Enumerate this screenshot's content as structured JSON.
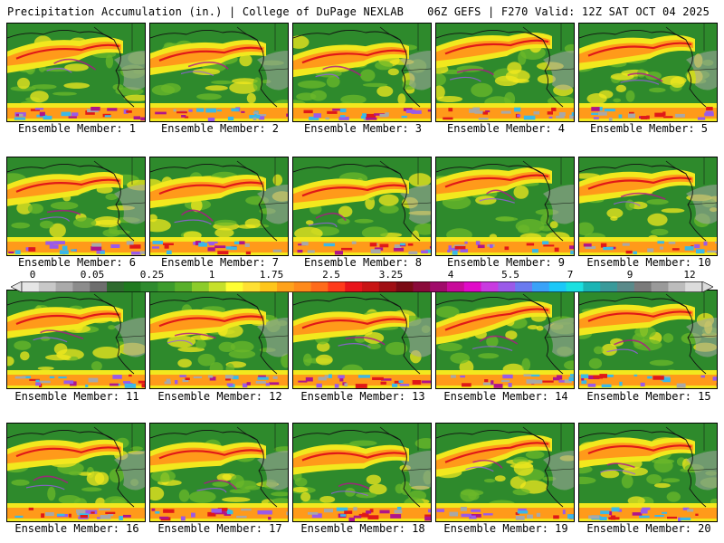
{
  "header": {
    "left_title": "Precipitation Accumulation (in.) | College of DuPage NEXLAB",
    "right_title": "06Z GEFS | F270 Valid: 12Z SAT OCT 04 2025"
  },
  "panels": [
    {
      "label": "Ensemble Member: 1"
    },
    {
      "label": "Ensemble Member: 2"
    },
    {
      "label": "Ensemble Member: 3"
    },
    {
      "label": "Ensemble Member: 4"
    },
    {
      "label": "Ensemble Member: 5"
    },
    {
      "label": "Ensemble Member: 6"
    },
    {
      "label": "Ensemble Member: 7"
    },
    {
      "label": "Ensemble Member: 8"
    },
    {
      "label": "Ensemble Member: 9"
    },
    {
      "label": "Ensemble Member: 10"
    },
    {
      "label": "Ensemble Member: 11"
    },
    {
      "label": "Ensemble Member: 12"
    },
    {
      "label": "Ensemble Member: 13"
    },
    {
      "label": "Ensemble Member: 14"
    },
    {
      "label": "Ensemble Member: 15"
    },
    {
      "label": "Ensemble Member: 16"
    },
    {
      "label": "Ensemble Member: 17"
    },
    {
      "label": "Ensemble Member: 18"
    },
    {
      "label": "Ensemble Member: 19"
    },
    {
      "label": "Ensemble Member: 20"
    }
  ],
  "colorbar": {
    "tick_labels": [
      "0",
      "0.05",
      "0.25",
      "1",
      "1.75",
      "2.5",
      "3.25",
      "4",
      "5.5",
      "7",
      "9",
      "12"
    ],
    "colors": [
      "#e6e6e6",
      "#c8c8c8",
      "#aaaaaa",
      "#8c8c8c",
      "#6e6e6e",
      "#2e6b2e",
      "#1f7a1f",
      "#2e8b2e",
      "#3c9c2c",
      "#58b02a",
      "#8ccc2a",
      "#c6e02a",
      "#ffff33",
      "#ffe033",
      "#ffc61a",
      "#ffa21a",
      "#ff8a1a",
      "#ff6a1a",
      "#ff3a1a",
      "#e8141a",
      "#c81414",
      "#a00f14",
      "#7a0a14",
      "#8a0a3a",
      "#a00a6a",
      "#c80a9a",
      "#e00ac8",
      "#c83ae0",
      "#9a5ae8",
      "#6a7af0",
      "#3aa2f8",
      "#1ac8f8",
      "#1ae0e0",
      "#1ab4b4",
      "#3a9a9a",
      "#5a8a8a",
      "#7a7a7a",
      "#9a9a9a",
      "#bcbcbc",
      "#dcdcdc"
    ]
  },
  "map_palette": {
    "land": "#2e8a2c",
    "light_green": "#6bb82a",
    "yellow": "#f2e81e",
    "orange": "#ff9a1a",
    "red": "#e01818",
    "magenta": "#b0148a",
    "purple": "#9a5ae8",
    "cyan": "#3ab8e8",
    "gray": "#a8a8a8",
    "border": "#111111"
  }
}
